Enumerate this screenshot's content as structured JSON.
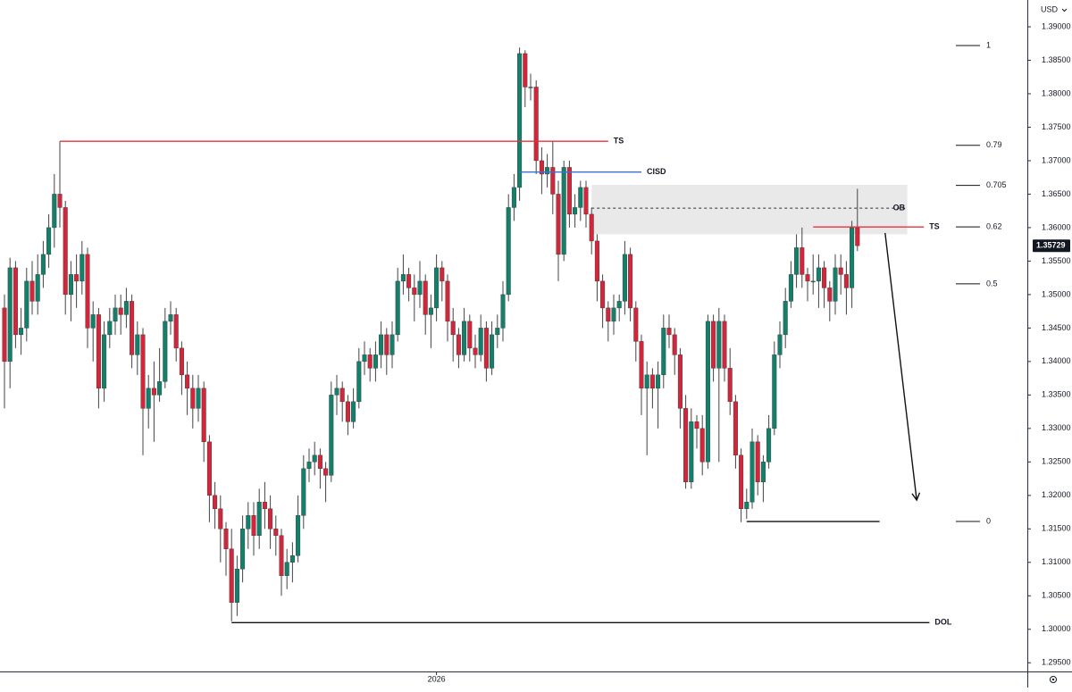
{
  "chart_data": {
    "type": "candlestick",
    "currency": "USD",
    "up_color": "#12806a",
    "down_color": "#d3263a",
    "ylim": [
      1.2937,
      1.394
    ],
    "yticks": [
      {
        "value": 1.295,
        "label": "1.29500"
      },
      {
        "value": 1.3,
        "label": "1.30000"
      },
      {
        "value": 1.305,
        "label": "1.30500"
      },
      {
        "value": 1.31,
        "label": "1.31000"
      },
      {
        "value": 1.315,
        "label": "1.31500"
      },
      {
        "value": 1.32,
        "label": "1.32000"
      },
      {
        "value": 1.325,
        "label": "1.32500"
      },
      {
        "value": 1.33,
        "label": "1.33000"
      },
      {
        "value": 1.335,
        "label": "1.33500"
      },
      {
        "value": 1.34,
        "label": "1.34000"
      },
      {
        "value": 1.345,
        "label": "1.34500"
      },
      {
        "value": 1.35,
        "label": "1.35000"
      },
      {
        "value": 1.355,
        "label": "1.35500"
      },
      {
        "value": 1.36,
        "label": "1.36000"
      },
      {
        "value": 1.365,
        "label": "1.36500"
      },
      {
        "value": 1.37,
        "label": "1.37000"
      },
      {
        "value": 1.375,
        "label": "1.37500"
      },
      {
        "value": 1.38,
        "label": "1.38000"
      },
      {
        "value": 1.385,
        "label": "1.38500"
      },
      {
        "value": 1.39,
        "label": "1.39000"
      }
    ],
    "xticks": [
      {
        "value": 78,
        "label": "2026"
      }
    ],
    "last_price": 1.35729,
    "ohlc": [
      [
        1.348,
        1.35,
        1.333,
        1.34
      ],
      [
        1.34,
        1.3555,
        1.336,
        1.354
      ],
      [
        1.354,
        1.355,
        1.342,
        1.344
      ],
      [
        1.344,
        1.348,
        1.341,
        1.345
      ],
      [
        1.345,
        1.354,
        1.343,
        1.352
      ],
      [
        1.352,
        1.355,
        1.347,
        1.349
      ],
      [
        1.349,
        1.356,
        1.347,
        1.353
      ],
      [
        1.353,
        1.358,
        1.351,
        1.356
      ],
      [
        1.356,
        1.362,
        1.354,
        1.36
      ],
      [
        1.36,
        1.368,
        1.357,
        1.365
      ],
      [
        1.365,
        1.3729,
        1.36,
        1.363
      ],
      [
        1.363,
        1.364,
        1.347,
        1.35
      ],
      [
        1.35,
        1.355,
        1.346,
        1.353
      ],
      [
        1.353,
        1.356,
        1.348,
        1.352
      ],
      [
        1.352,
        1.358,
        1.35,
        1.356
      ],
      [
        1.356,
        1.357,
        1.342,
        1.345
      ],
      [
        1.345,
        1.349,
        1.34,
        1.347
      ],
      [
        1.347,
        1.348,
        1.333,
        1.336
      ],
      [
        1.336,
        1.346,
        1.334,
        1.344
      ],
      [
        1.344,
        1.348,
        1.342,
        1.346
      ],
      [
        1.346,
        1.35,
        1.344,
        1.348
      ],
      [
        1.348,
        1.35,
        1.344,
        1.347
      ],
      [
        1.347,
        1.351,
        1.345,
        1.349
      ],
      [
        1.349,
        1.35,
        1.339,
        1.341
      ],
      [
        1.341,
        1.346,
        1.338,
        1.344
      ],
      [
        1.344,
        1.345,
        1.326,
        1.333
      ],
      [
        1.333,
        1.338,
        1.33,
        1.336
      ],
      [
        1.336,
        1.34,
        1.328,
        1.335
      ],
      [
        1.335,
        1.342,
        1.334,
        1.337
      ],
      [
        1.337,
        1.348,
        1.336,
        1.346
      ],
      [
        1.346,
        1.349,
        1.344,
        1.347
      ],
      [
        1.347,
        1.348,
        1.34,
        1.342
      ],
      [
        1.342,
        1.343,
        1.335,
        1.338
      ],
      [
        1.338,
        1.34,
        1.332,
        1.336
      ],
      [
        1.336,
        1.338,
        1.33,
        1.333
      ],
      [
        1.333,
        1.338,
        1.331,
        1.336
      ],
      [
        1.336,
        1.337,
        1.325,
        1.328
      ],
      [
        1.328,
        1.329,
        1.316,
        1.32
      ],
      [
        1.32,
        1.322,
        1.315,
        1.318
      ],
      [
        1.318,
        1.32,
        1.31,
        1.315
      ],
      [
        1.315,
        1.316,
        1.308,
        1.312
      ],
      [
        1.312,
        1.315,
        1.3012,
        1.304
      ],
      [
        1.304,
        1.311,
        1.302,
        1.309
      ],
      [
        1.309,
        1.317,
        1.307,
        1.315
      ],
      [
        1.315,
        1.319,
        1.312,
        1.317
      ],
      [
        1.317,
        1.319,
        1.311,
        1.314
      ],
      [
        1.314,
        1.321,
        1.312,
        1.319
      ],
      [
        1.319,
        1.322,
        1.315,
        1.318
      ],
      [
        1.318,
        1.32,
        1.312,
        1.315
      ],
      [
        1.315,
        1.317,
        1.311,
        1.314
      ],
      [
        1.314,
        1.315,
        1.305,
        1.308
      ],
      [
        1.308,
        1.312,
        1.306,
        1.31
      ],
      [
        1.31,
        1.313,
        1.307,
        1.311
      ],
      [
        1.311,
        1.32,
        1.31,
        1.317
      ],
      [
        1.317,
        1.326,
        1.315,
        1.324
      ],
      [
        1.324,
        1.327,
        1.322,
        1.325
      ],
      [
        1.325,
        1.328,
        1.323,
        1.326
      ],
      [
        1.326,
        1.327,
        1.321,
        1.324
      ],
      [
        1.324,
        1.325,
        1.319,
        1.323
      ],
      [
        1.323,
        1.337,
        1.322,
        1.335
      ],
      [
        1.335,
        1.338,
        1.332,
        1.336
      ],
      [
        1.336,
        1.337,
        1.331,
        1.334
      ],
      [
        1.334,
        1.335,
        1.329,
        1.331
      ],
      [
        1.331,
        1.336,
        1.33,
        1.334
      ],
      [
        1.334,
        1.342,
        1.333,
        1.34
      ],
      [
        1.34,
        1.343,
        1.338,
        1.341
      ],
      [
        1.341,
        1.342,
        1.337,
        1.339
      ],
      [
        1.339,
        1.343,
        1.337,
        1.341
      ],
      [
        1.341,
        1.346,
        1.339,
        1.344
      ],
      [
        1.344,
        1.345,
        1.338,
        1.341
      ],
      [
        1.341,
        1.346,
        1.339,
        1.344
      ],
      [
        1.344,
        1.354,
        1.343,
        1.352
      ],
      [
        1.352,
        1.356,
        1.35,
        1.353
      ],
      [
        1.353,
        1.354,
        1.349,
        1.351
      ],
      [
        1.351,
        1.353,
        1.346,
        1.35
      ],
      [
        1.35,
        1.355,
        1.348,
        1.352
      ],
      [
        1.352,
        1.353,
        1.344,
        1.347
      ],
      [
        1.347,
        1.35,
        1.342,
        1.348
      ],
      [
        1.348,
        1.356,
        1.346,
        1.354
      ],
      [
        1.354,
        1.355,
        1.349,
        1.352
      ],
      [
        1.352,
        1.353,
        1.343,
        1.346
      ],
      [
        1.346,
        1.348,
        1.34,
        1.344
      ],
      [
        1.344,
        1.345,
        1.339,
        1.341
      ],
      [
        1.341,
        1.348,
        1.34,
        1.346
      ],
      [
        1.346,
        1.347,
        1.34,
        1.342
      ],
      [
        1.342,
        1.344,
        1.339,
        1.341
      ],
      [
        1.341,
        1.347,
        1.34,
        1.345
      ],
      [
        1.345,
        1.346,
        1.337,
        1.339
      ],
      [
        1.339,
        1.346,
        1.338,
        1.344
      ],
      [
        1.344,
        1.347,
        1.342,
        1.345
      ],
      [
        1.345,
        1.352,
        1.343,
        1.35
      ],
      [
        1.35,
        1.365,
        1.349,
        1.363
      ],
      [
        1.363,
        1.368,
        1.361,
        1.366
      ],
      [
        1.366,
        1.3869,
        1.364,
        1.386
      ],
      [
        1.386,
        1.3865,
        1.378,
        1.381
      ],
      [
        1.381,
        1.383,
        1.379,
        1.381
      ],
      [
        1.381,
        1.382,
        1.368,
        1.37
      ],
      [
        1.37,
        1.372,
        1.365,
        1.368
      ],
      [
        1.368,
        1.371,
        1.366,
        1.369
      ],
      [
        1.369,
        1.373,
        1.362,
        1.365
      ],
      [
        1.365,
        1.367,
        1.352,
        1.356
      ],
      [
        1.356,
        1.37,
        1.355,
        1.369
      ],
      [
        1.369,
        1.37,
        1.36,
        1.362
      ],
      [
        1.362,
        1.365,
        1.36,
        1.363
      ],
      [
        1.363,
        1.367,
        1.361,
        1.366
      ],
      [
        1.366,
        1.367,
        1.36,
        1.362
      ],
      [
        1.362,
        1.363,
        1.356,
        1.358
      ],
      [
        1.358,
        1.359,
        1.349,
        1.352
      ],
      [
        1.352,
        1.353,
        1.345,
        1.348
      ],
      [
        1.348,
        1.349,
        1.343,
        1.346
      ],
      [
        1.346,
        1.35,
        1.344,
        1.348
      ],
      [
        1.348,
        1.35,
        1.346,
        1.349
      ],
      [
        1.349,
        1.358,
        1.347,
        1.356
      ],
      [
        1.356,
        1.357,
        1.346,
        1.348
      ],
      [
        1.348,
        1.349,
        1.34,
        1.343
      ],
      [
        1.343,
        1.344,
        1.332,
        1.336
      ],
      [
        1.336,
        1.34,
        1.326,
        1.338
      ],
      [
        1.338,
        1.339,
        1.333,
        1.336
      ],
      [
        1.336,
        1.34,
        1.33,
        1.338
      ],
      [
        1.338,
        1.347,
        1.336,
        1.345
      ],
      [
        1.345,
        1.347,
        1.342,
        1.344
      ],
      [
        1.344,
        1.345,
        1.338,
        1.341
      ],
      [
        1.341,
        1.342,
        1.33,
        1.333
      ],
      [
        1.333,
        1.335,
        1.321,
        1.322
      ],
      [
        1.322,
        1.333,
        1.321,
        1.331
      ],
      [
        1.331,
        1.332,
        1.327,
        1.33
      ],
      [
        1.33,
        1.332,
        1.323,
        1.325
      ],
      [
        1.325,
        1.347,
        1.324,
        1.346
      ],
      [
        1.346,
        1.347,
        1.337,
        1.339
      ],
      [
        1.339,
        1.348,
        1.325,
        1.346
      ],
      [
        1.346,
        1.347,
        1.337,
        1.339
      ],
      [
        1.339,
        1.342,
        1.332,
        1.334
      ],
      [
        1.334,
        1.335,
        1.324,
        1.326
      ],
      [
        1.326,
        1.327,
        1.316,
        1.318
      ],
      [
        1.318,
        1.321,
        1.3165,
        1.319
      ],
      [
        1.319,
        1.33,
        1.318,
        1.328
      ],
      [
        1.328,
        1.329,
        1.32,
        1.322
      ],
      [
        1.322,
        1.326,
        1.319,
        1.325
      ],
      [
        1.325,
        1.332,
        1.324,
        1.33
      ],
      [
        1.33,
        1.343,
        1.329,
        1.341
      ],
      [
        1.341,
        1.346,
        1.339,
        1.344
      ],
      [
        1.344,
        1.351,
        1.342,
        1.349
      ],
      [
        1.349,
        1.355,
        1.348,
        1.353
      ],
      [
        1.353,
        1.359,
        1.351,
        1.357
      ],
      [
        1.357,
        1.36,
        1.351,
        1.353
      ],
      [
        1.353,
        1.354,
        1.349,
        1.352
      ],
      [
        1.352,
        1.356,
        1.35,
        1.352
      ],
      [
        1.352,
        1.356,
        1.348,
        1.354
      ],
      [
        1.354,
        1.355,
        1.348,
        1.351
      ],
      [
        1.351,
        1.352,
        1.346,
        1.349
      ],
      [
        1.349,
        1.356,
        1.347,
        1.354
      ],
      [
        1.354,
        1.356,
        1.35,
        1.353
      ],
      [
        1.353,
        1.355,
        1.347,
        1.351
      ],
      [
        1.351,
        1.361,
        1.348,
        1.36
      ],
      [
        1.36,
        1.3658,
        1.3565,
        1.3573
      ]
    ],
    "zone": {
      "label": "OB",
      "top": 1.3664,
      "bottom": 1.359,
      "mid": 1.3629,
      "from": 106,
      "to": 163
    },
    "levels": [
      {
        "label": "TS",
        "price": 1.3729,
        "from": 10,
        "to": 109,
        "color": "#e8323c"
      },
      {
        "label": "CISD",
        "price": 1.3683,
        "from": 93,
        "to": 115,
        "color": "#3d6fd1"
      },
      {
        "label": "TS",
        "price": 1.3601,
        "from": 146,
        "to": 166,
        "color": "#e8323c"
      },
      {
        "price": 1.3161,
        "from": 134,
        "to": 158,
        "color": "#111111"
      },
      {
        "label": "DOL",
        "price": 1.301,
        "from": 41,
        "to": 167,
        "color": "#111111"
      }
    ],
    "arrow": {
      "from": [
        159,
        1.3592
      ],
      "to": [
        164.7,
        1.3193
      ]
    },
    "fib": [
      {
        "label": "1",
        "price": 1.3872
      },
      {
        "label": "0.79",
        "price": 1.3723
      },
      {
        "label": "0.705",
        "price": 1.3663
      },
      {
        "label": "0.62",
        "price": 1.3601
      },
      {
        "label": "0.5",
        "price": 1.3516
      },
      {
        "label": "0",
        "price": 1.3161
      }
    ]
  }
}
